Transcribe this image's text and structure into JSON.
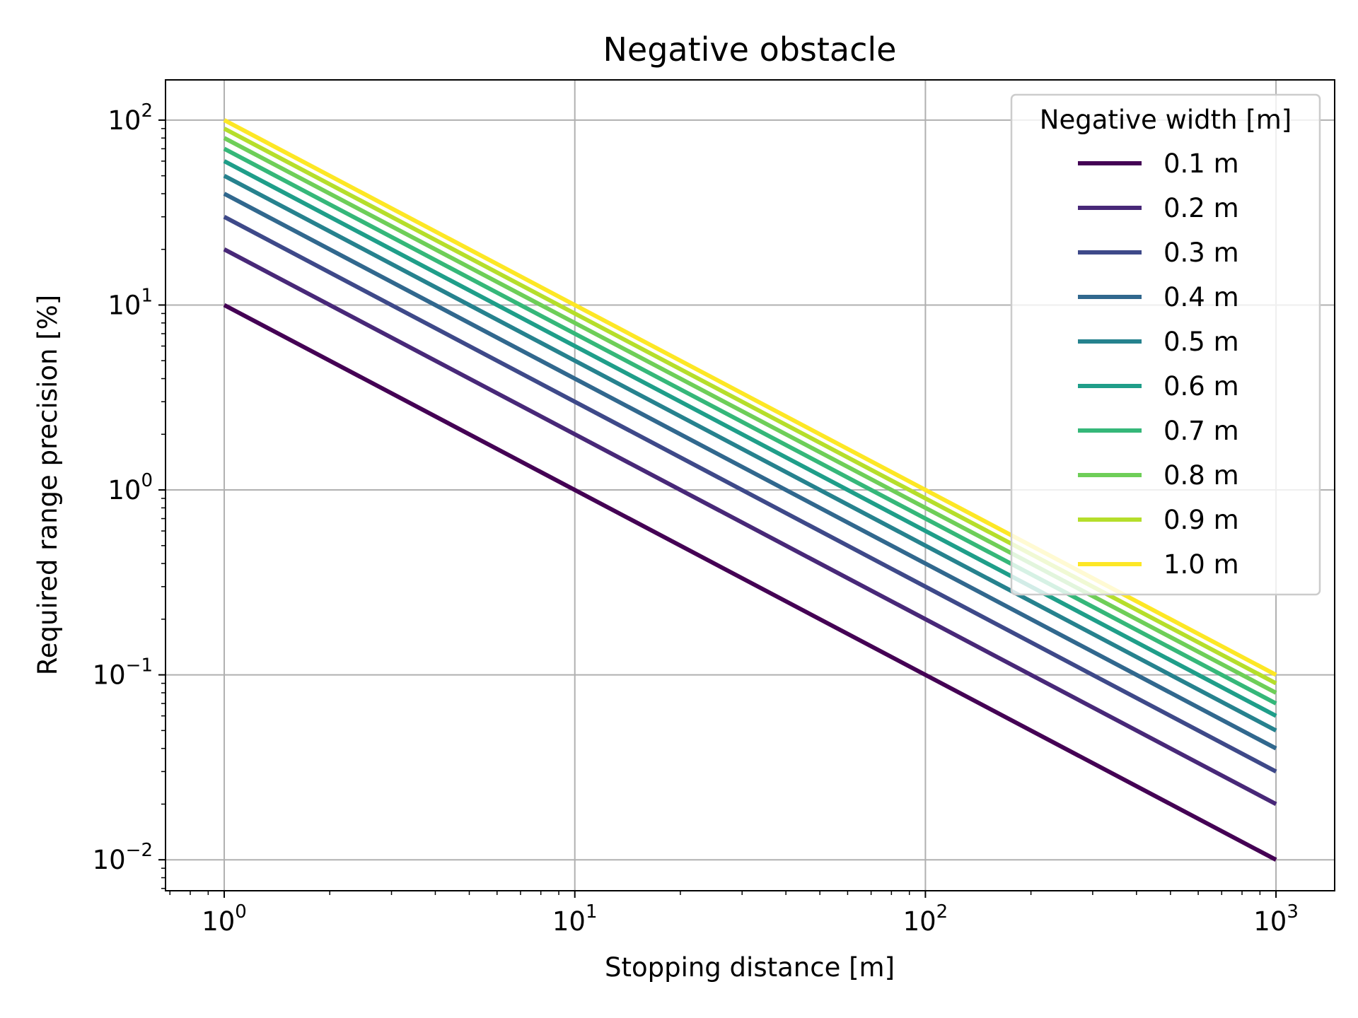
{
  "chart_data": {
    "type": "line",
    "title": "Negative obstacle",
    "xlabel": "Stopping distance [m]",
    "ylabel": "Required range precision [%]",
    "x_scale": "log",
    "y_scale": "log",
    "xlim": [
      0.68,
      1470
    ],
    "ylim": [
      0.0068,
      165
    ],
    "x_ticks": [
      {
        "base": "10",
        "exp": "0",
        "value": 1
      },
      {
        "base": "10",
        "exp": "1",
        "value": 10
      },
      {
        "base": "10",
        "exp": "2",
        "value": 100
      },
      {
        "base": "10",
        "exp": "3",
        "value": 1000
      }
    ],
    "y_ticks": [
      {
        "base": "10",
        "exp": "−2",
        "value": 0.01
      },
      {
        "base": "10",
        "exp": "−1",
        "value": 0.1
      },
      {
        "base": "10",
        "exp": "0",
        "value": 1
      },
      {
        "base": "10",
        "exp": "1",
        "value": 10
      },
      {
        "base": "10",
        "exp": "2",
        "value": 100
      }
    ],
    "grid": true,
    "legend": {
      "title": "Negative width [m]",
      "placement": "top-right"
    },
    "x": [
      1,
      1000
    ],
    "series": [
      {
        "name": "0.1 m",
        "color": "#440154",
        "values": [
          10,
          0.01
        ]
      },
      {
        "name": "0.2 m",
        "color": "#482878",
        "values": [
          20,
          0.02
        ]
      },
      {
        "name": "0.3 m",
        "color": "#3e4989",
        "values": [
          30,
          0.03
        ]
      },
      {
        "name": "0.4 m",
        "color": "#31688e",
        "values": [
          40,
          0.04
        ]
      },
      {
        "name": "0.5 m",
        "color": "#26828e",
        "values": [
          50,
          0.05
        ]
      },
      {
        "name": "0.6 m",
        "color": "#1f9e89",
        "values": [
          60,
          0.06
        ]
      },
      {
        "name": "0.7 m",
        "color": "#35b779",
        "values": [
          70,
          0.07
        ]
      },
      {
        "name": "0.8 m",
        "color": "#6ece58",
        "values": [
          80,
          0.08
        ]
      },
      {
        "name": "0.9 m",
        "color": "#b5de2b",
        "values": [
          90,
          0.09
        ]
      },
      {
        "name": "1.0 m",
        "color": "#fde725",
        "values": [
          100,
          0.1
        ]
      }
    ]
  }
}
